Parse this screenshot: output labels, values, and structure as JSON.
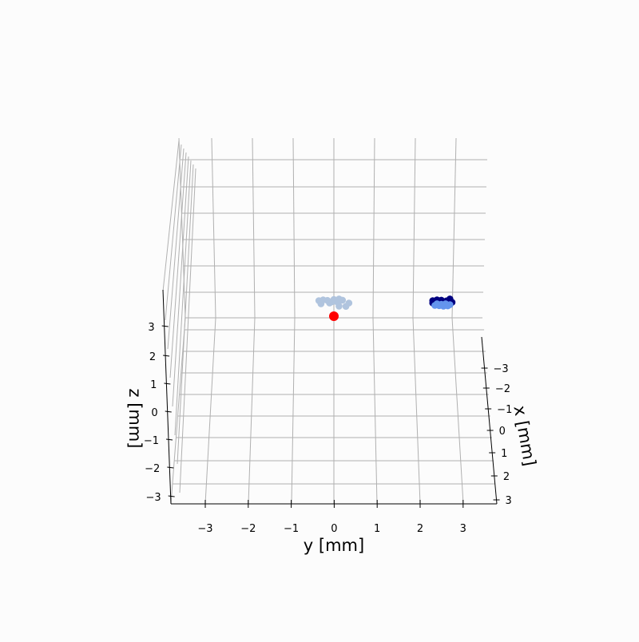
{
  "chart_data": {
    "type": "scatter",
    "projection": "3d",
    "title": "",
    "xlabel": "x [mm]",
    "ylabel": "y [mm]",
    "zlabel": "z [mm]",
    "xlim": [
      -3.6,
      3.6
    ],
    "ylim": [
      -3.8,
      3.8
    ],
    "zlim": [
      -3.3,
      3.3
    ],
    "x_ticks": [
      "−3",
      "−2",
      "−1",
      "0",
      "1",
      "2",
      "3"
    ],
    "y_ticks": [
      "−3",
      "−2",
      "−1",
      "0",
      "1",
      "2",
      "3"
    ],
    "z_ticks": [
      "−3",
      "−2",
      "−1",
      "0",
      "1",
      "2",
      "3"
    ],
    "grid": true,
    "series": [
      {
        "color": "#b0c4de",
        "points": [
          {
            "y": -0.35,
            "z": 0.65
          },
          {
            "y": -0.25,
            "z": 0.68
          },
          {
            "y": -0.15,
            "z": 0.66
          },
          {
            "y": 0.0,
            "z": 0.7
          },
          {
            "y": 0.12,
            "z": 0.72
          },
          {
            "y": 0.2,
            "z": 0.67
          },
          {
            "y": -0.05,
            "z": 0.6
          },
          {
            "y": 0.05,
            "z": 0.62
          },
          {
            "y": -0.3,
            "z": 0.52
          },
          {
            "y": -0.1,
            "z": 0.55
          },
          {
            "y": 0.1,
            "z": 0.57
          },
          {
            "y": 0.35,
            "z": 0.55
          },
          {
            "y": 0.12,
            "z": 0.42
          },
          {
            "y": 0.28,
            "z": 0.41
          }
        ]
      },
      {
        "color": "#000080",
        "points": [
          {
            "y": 2.3,
            "z": 0.65
          },
          {
            "y": 2.4,
            "z": 0.68
          },
          {
            "y": 2.5,
            "z": 0.67
          },
          {
            "y": 2.45,
            "z": 0.6
          },
          {
            "y": 2.7,
            "z": 0.72
          },
          {
            "y": 2.75,
            "z": 0.58
          },
          {
            "y": 2.3,
            "z": 0.55
          },
          {
            "y": 2.55,
            "z": 0.56
          },
          {
            "y": 2.62,
            "z": 0.64
          }
        ]
      },
      {
        "color": "#6495ed",
        "points": [
          {
            "y": 2.35,
            "z": 0.45
          },
          {
            "y": 2.45,
            "z": 0.44
          },
          {
            "y": 2.55,
            "z": 0.42
          },
          {
            "y": 2.65,
            "z": 0.43
          },
          {
            "y": 2.5,
            "z": 0.5
          },
          {
            "y": 2.4,
            "z": 0.52
          },
          {
            "y": 2.6,
            "z": 0.52
          },
          {
            "y": 2.7,
            "z": 0.48
          }
        ]
      },
      {
        "color": "#ff0000",
        "points": [
          {
            "y": 0.0,
            "z": 0.0
          }
        ]
      }
    ]
  }
}
